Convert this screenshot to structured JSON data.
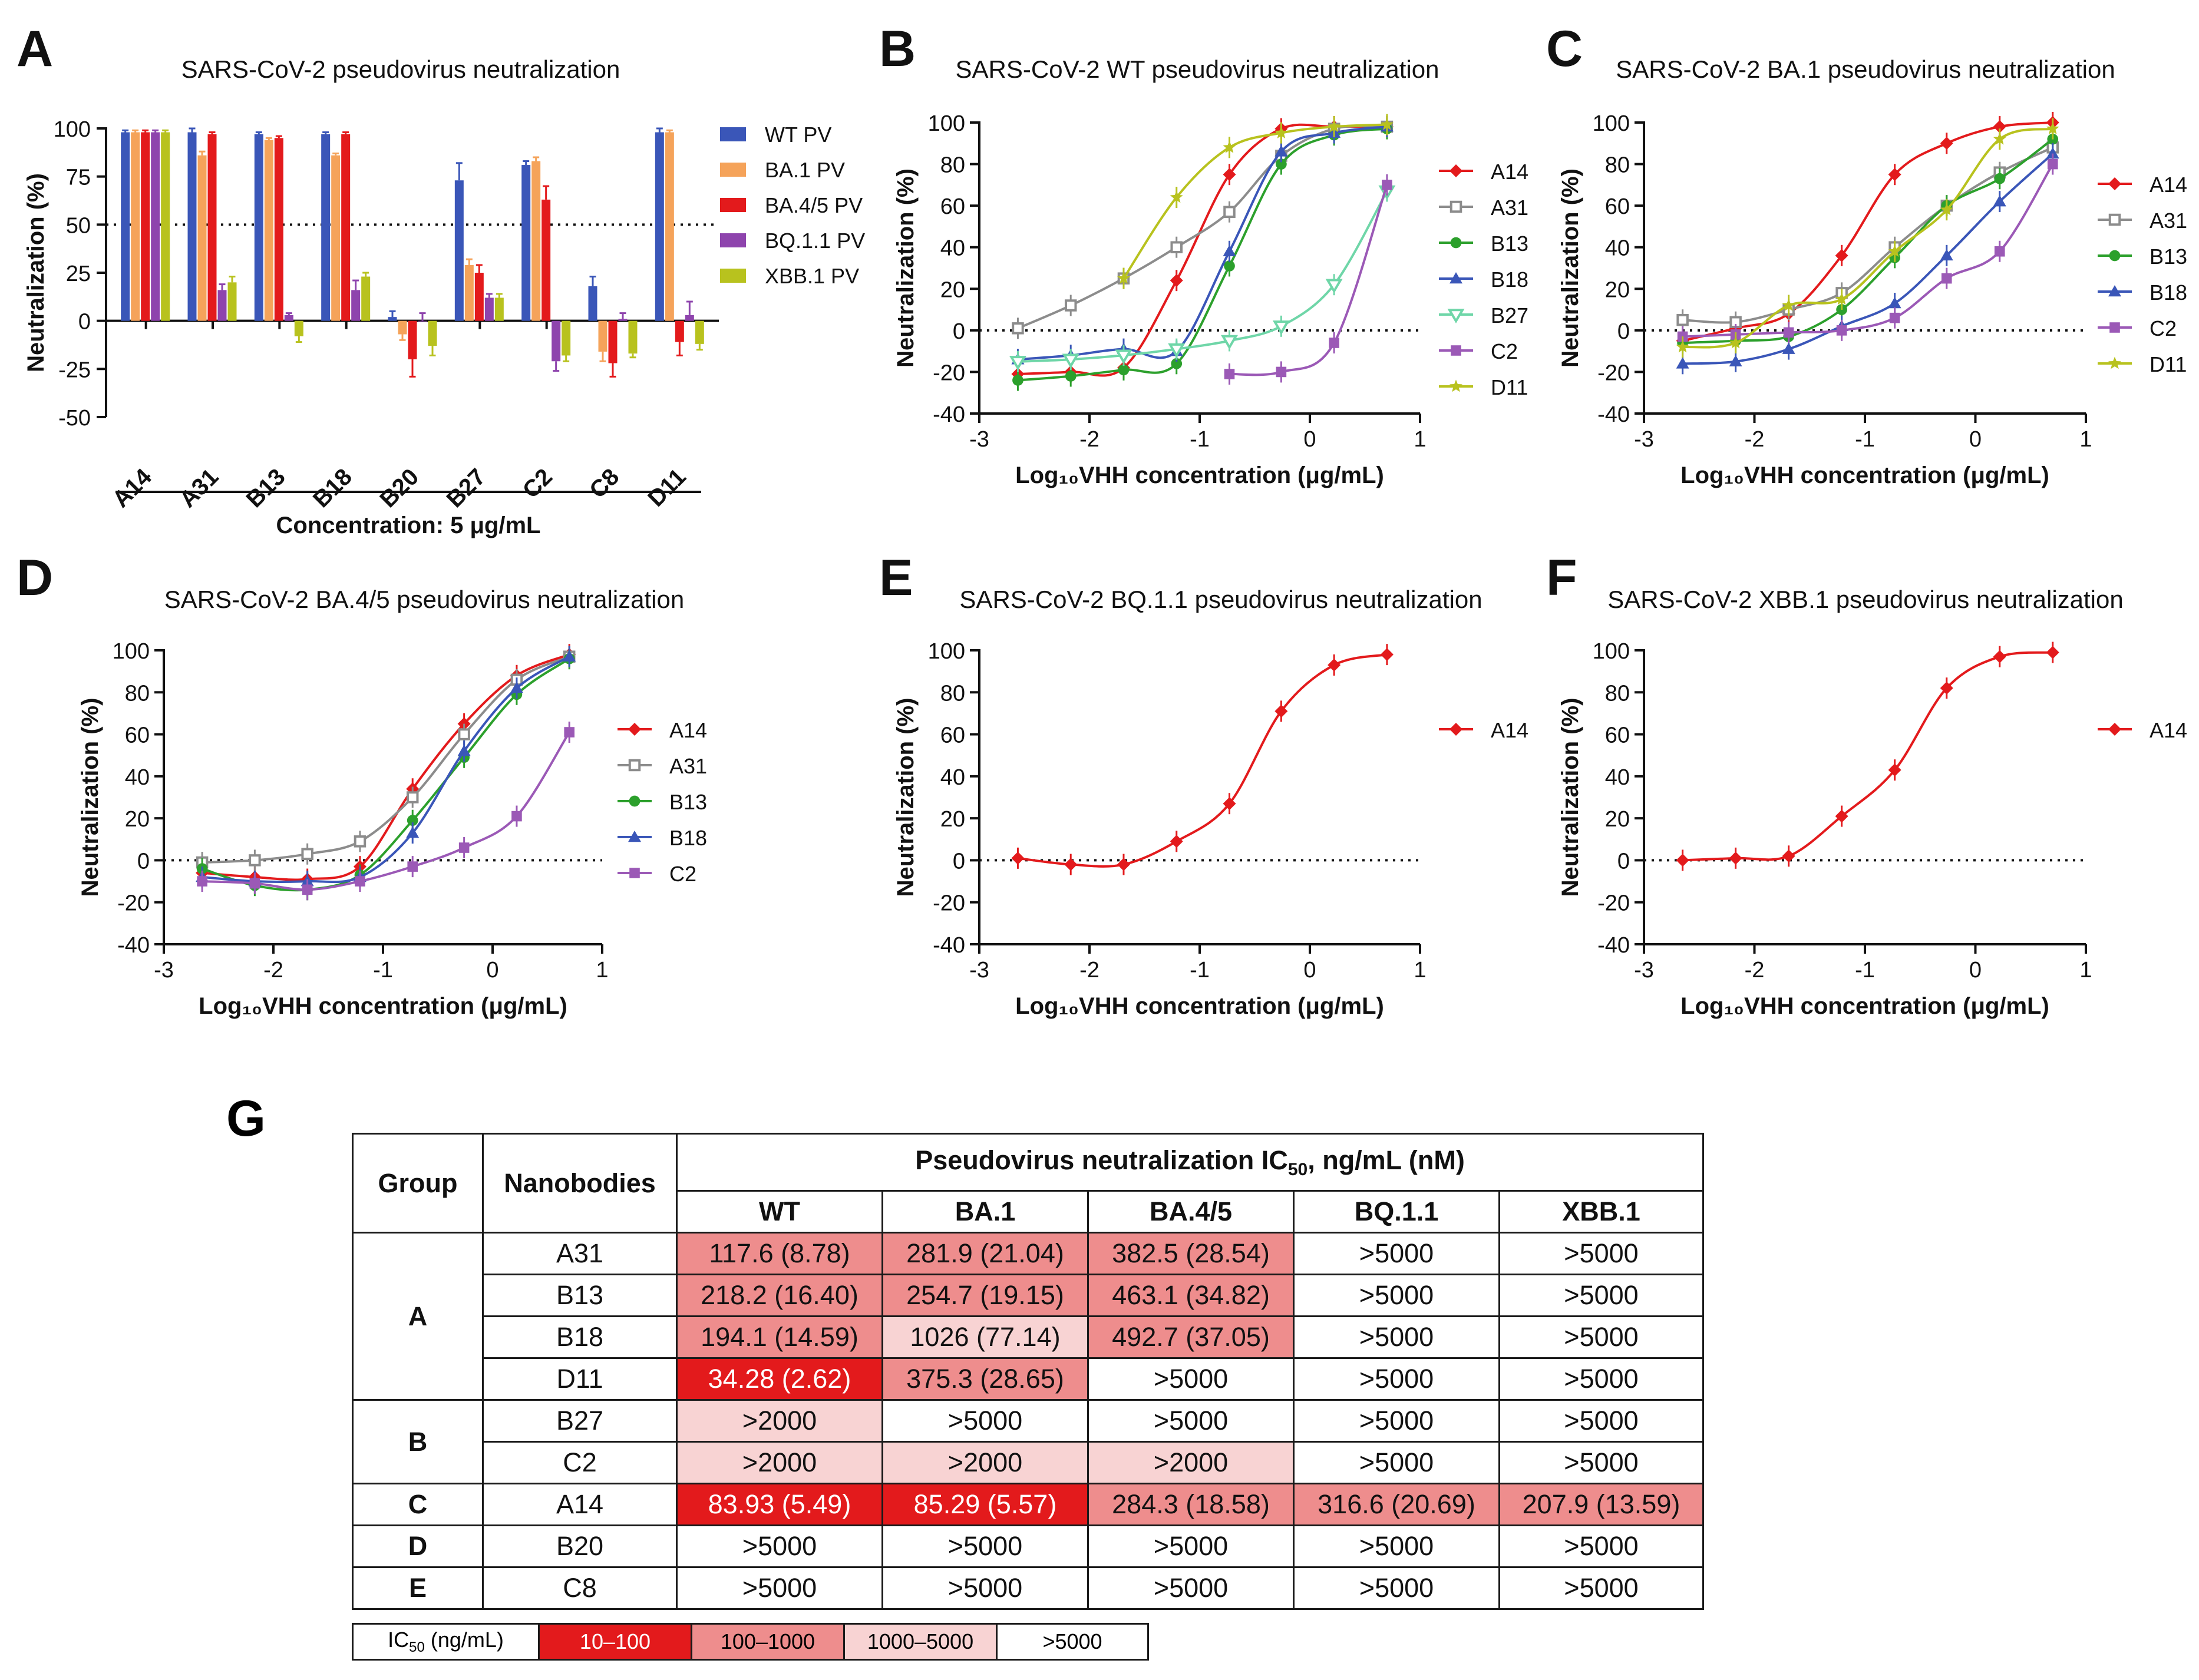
{
  "colors": {
    "red": "#e31a1c",
    "grey": "#8c8c8c",
    "green": "#2ca02c",
    "blue": "#3a56b8",
    "teal": "#6fd6a8",
    "purple": "#9b59b6",
    "yellow": "#b8c21e",
    "orange": "#f5a35a"
  },
  "chart_data": [
    {
      "panel": "A",
      "type": "bar",
      "title": "SARS-CoV-2 pseudovirus neutralization",
      "ylabel": "Neutralization (%)",
      "xlabel": "Concentration: 5 μg/mL",
      "ylim": [
        -50,
        100
      ],
      "yticks": [
        "-50",
        "-25",
        "0",
        "25",
        "50",
        "75",
        "100"
      ],
      "refline": 50,
      "categories": [
        "A14",
        "A31",
        "B13",
        "B18",
        "B20",
        "B27",
        "C2",
        "C8",
        "D11"
      ],
      "series": [
        {
          "name": "WT PV",
          "color": "#3a56b8",
          "values": [
            98,
            98,
            97,
            97,
            2,
            73,
            81,
            18,
            98
          ],
          "err": [
            1,
            2,
            1,
            1,
            3,
            9,
            2,
            5,
            2
          ]
        },
        {
          "name": "BA.1 PV",
          "color": "#f5a35a",
          "values": [
            98,
            86,
            94,
            86,
            -7,
            29,
            83,
            -16,
            98
          ],
          "err": [
            1,
            2,
            1,
            1,
            3,
            3,
            2,
            5,
            1
          ]
        },
        {
          "name": "BA.4/5 PV",
          "color": "#e31a1c",
          "values": [
            98,
            97,
            95,
            97,
            -20,
            25,
            63,
            -22,
            -11
          ],
          "err": [
            1,
            1,
            1,
            1,
            9,
            4,
            7,
            7,
            7
          ]
        },
        {
          "name": "BQ.1.1 PV",
          "color": "#8e44ad",
          "values": [
            98,
            16,
            3,
            16,
            0,
            12,
            -21,
            1,
            3
          ],
          "err": [
            1,
            3,
            1,
            5,
            4,
            2,
            5,
            3,
            7
          ]
        },
        {
          "name": "XBB.1 PV",
          "color": "#b8c21e",
          "values": [
            98,
            20,
            -8,
            23,
            -13,
            12,
            -18,
            -17,
            -12
          ],
          "err": [
            1,
            3,
            3,
            2,
            5,
            2,
            3,
            2,
            3
          ]
        }
      ],
      "legend": "right"
    },
    {
      "panel": "B",
      "type": "line",
      "title": "SARS-CoV-2 WT pseudovirus neutralization",
      "xlabel": "Log₁₀VHH concentration (μg/mL)",
      "ylabel": "Neutralization (%)",
      "xlim": [
        -3,
        1
      ],
      "ylim": [
        -40,
        100
      ],
      "xticks": [
        "-3",
        "-2",
        "-1",
        "0",
        "1"
      ],
      "yticks": [
        "-40",
        "-20",
        "0",
        "20",
        "40",
        "60",
        "80",
        "100"
      ],
      "x": [
        -2.65,
        -2.17,
        -1.69,
        -1.21,
        -0.73,
        -0.26,
        0.22,
        0.7
      ],
      "series": [
        {
          "name": "A14",
          "marker": "diamond",
          "color": "#e31a1c",
          "values": [
            -21,
            -20,
            -18,
            24,
            75,
            97,
            98,
            98
          ]
        },
        {
          "name": "A31",
          "marker": "square-open",
          "color": "#8c8c8c",
          "values": [
            1,
            12,
            25,
            40,
            57,
            84,
            97,
            98
          ]
        },
        {
          "name": "B13",
          "marker": "circle",
          "color": "#2ca02c",
          "values": [
            -24,
            -22,
            -19,
            -16,
            31,
            80,
            94,
            97
          ]
        },
        {
          "name": "B18",
          "marker": "triangle",
          "color": "#3a56b8",
          "values": [
            -14,
            -12,
            -9,
            -10,
            38,
            86,
            95,
            98
          ]
        },
        {
          "name": "B27",
          "marker": "triangle-down-open",
          "color": "#6fd6a8",
          "values": [
            -15,
            -14,
            -12,
            -9,
            -5,
            2,
            22,
            67
          ]
        },
        {
          "name": "C2",
          "marker": "square",
          "color": "#9b59b6",
          "values": [
            null,
            null,
            null,
            null,
            -21,
            -20,
            -6,
            70
          ]
        },
        {
          "name": "D11",
          "marker": "star",
          "color": "#b8c21e",
          "values": [
            null,
            null,
            25,
            64,
            88,
            95,
            98,
            99
          ]
        }
      ],
      "legend": "right"
    },
    {
      "panel": "C",
      "type": "line",
      "title": "SARS-CoV-2 BA.1 pseudovirus neutralization",
      "xlabel": "Log₁₀VHH concentration (μg/mL)",
      "ylabel": "Neutralization (%)",
      "xlim": [
        -3,
        1
      ],
      "ylim": [
        -40,
        100
      ],
      "xticks": [
        "-3",
        "-2",
        "-1",
        "0",
        "1"
      ],
      "yticks": [
        "-40",
        "-20",
        "0",
        "20",
        "40",
        "60",
        "80",
        "100"
      ],
      "x": [
        -2.65,
        -2.17,
        -1.69,
        -1.21,
        -0.73,
        -0.26,
        0.22,
        0.7
      ],
      "series": [
        {
          "name": "A14",
          "marker": "diamond",
          "color": "#e31a1c",
          "values": [
            -5,
            1,
            8,
            36,
            75,
            90,
            98,
            100
          ]
        },
        {
          "name": "A31",
          "marker": "square-open",
          "color": "#8c8c8c",
          "values": [
            5,
            4,
            10,
            18,
            40,
            60,
            76,
            88
          ]
        },
        {
          "name": "B13",
          "marker": "circle",
          "color": "#2ca02c",
          "values": [
            -6,
            -5,
            -3,
            10,
            35,
            60,
            73,
            92
          ]
        },
        {
          "name": "B18",
          "marker": "triangle",
          "color": "#3a56b8",
          "values": [
            -16,
            -15,
            -9,
            2,
            13,
            36,
            62,
            85
          ]
        },
        {
          "name": "C2",
          "marker": "square",
          "color": "#9b59b6",
          "values": [
            -3,
            -2,
            -1,
            0,
            6,
            25,
            38,
            80
          ]
        },
        {
          "name": "D11",
          "marker": "star",
          "color": "#b8c21e",
          "values": [
            -8,
            -6,
            12,
            15,
            38,
            58,
            92,
            97
          ]
        }
      ],
      "legend": "right"
    },
    {
      "panel": "D",
      "type": "line",
      "title": "SARS-CoV-2 BA.4/5 pseudovirus neutralization",
      "xlabel": "Log₁₀VHH concentration (μg/mL)",
      "ylabel": "Neutralization (%)",
      "xlim": [
        -3,
        1
      ],
      "ylim": [
        -40,
        100
      ],
      "xticks": [
        "-3",
        "-2",
        "-1",
        "0",
        "1"
      ],
      "yticks": [
        "-40",
        "-20",
        "0",
        "20",
        "40",
        "60",
        "80",
        "100"
      ],
      "x": [
        -2.65,
        -2.17,
        -1.69,
        -1.21,
        -0.73,
        -0.26,
        0.22,
        0.7
      ],
      "series": [
        {
          "name": "A14",
          "marker": "diamond",
          "color": "#e31a1c",
          "values": [
            -6,
            -8,
            -9,
            -3,
            34,
            65,
            88,
            98
          ]
        },
        {
          "name": "A31",
          "marker": "square-open",
          "color": "#8c8c8c",
          "values": [
            -1,
            0,
            3,
            9,
            30,
            60,
            86,
            97
          ]
        },
        {
          "name": "B13",
          "marker": "circle",
          "color": "#2ca02c",
          "values": [
            -4,
            -12,
            -14,
            -7,
            19,
            49,
            79,
            96
          ]
        },
        {
          "name": "B18",
          "marker": "triangle",
          "color": "#3a56b8",
          "values": [
            -8,
            -10,
            -10,
            -8,
            13,
            52,
            82,
            97
          ]
        },
        {
          "name": "C2",
          "marker": "square",
          "color": "#9b59b6",
          "values": [
            -10,
            -11,
            -14,
            -10,
            -3,
            6,
            21,
            61
          ]
        }
      ],
      "legend": "right"
    },
    {
      "panel": "E",
      "type": "line",
      "title": "SARS-CoV-2 BQ.1.1 pseudovirus neutralization",
      "xlabel": "Log₁₀VHH concentration (μg/mL)",
      "ylabel": "Neutralization (%)",
      "xlim": [
        -3,
        1
      ],
      "ylim": [
        -40,
        100
      ],
      "xticks": [
        "-3",
        "-2",
        "-1",
        "0",
        "1"
      ],
      "yticks": [
        "-40",
        "-20",
        "0",
        "20",
        "40",
        "60",
        "80",
        "100"
      ],
      "x": [
        -2.65,
        -2.17,
        -1.69,
        -1.21,
        -0.73,
        -0.26,
        0.22,
        0.7
      ],
      "series": [
        {
          "name": "A14",
          "marker": "diamond",
          "color": "#e31a1c",
          "values": [
            1,
            -2,
            -2,
            9,
            27,
            71,
            93,
            98
          ]
        }
      ],
      "legend": "right"
    },
    {
      "panel": "F",
      "type": "line",
      "title": "SARS-CoV-2 XBB.1 pseudovirus neutralization",
      "xlabel": "Log₁₀VHH concentration (μg/mL)",
      "ylabel": "Neutralization (%)",
      "xlim": [
        -3,
        1
      ],
      "ylim": [
        -40,
        100
      ],
      "xticks": [
        "-3",
        "-2",
        "-1",
        "0",
        "1"
      ],
      "yticks": [
        "-40",
        "-20",
        "0",
        "20",
        "40",
        "60",
        "80",
        "100"
      ],
      "x": [
        -2.65,
        -2.17,
        -1.69,
        -1.21,
        -0.73,
        -0.26,
        0.22,
        0.7
      ],
      "series": [
        {
          "name": "A14",
          "marker": "diamond",
          "color": "#e31a1c",
          "values": [
            0,
            1,
            2,
            21,
            43,
            82,
            97,
            99
          ]
        }
      ],
      "legend": "right"
    },
    {
      "panel": "G",
      "type": "table",
      "header": {
        "group": "Group",
        "nanobodies": "Nanobodies",
        "main": "Pseudovirus  neutralization IC",
        "sub": "50",
        "main_tail": ", ng/mL (nM)",
        "cols": [
          "WT",
          "BA.1",
          "BA.4/5",
          "BQ.1.1",
          "XBB.1"
        ]
      },
      "groups": [
        {
          "label": "A",
          "rows": [
            {
              "name": "A31",
              "cells": [
                {
                  "v": "117.6 (8.78)",
                  "c": 2
                },
                {
                  "v": "281.9 (21.04)",
                  "c": 2
                },
                {
                  "v": "382.5 (28.54)",
                  "c": 2
                },
                {
                  "v": ">5000",
                  "c": 4
                },
                {
                  "v": ">5000",
                  "c": 4
                }
              ]
            },
            {
              "name": "B13",
              "cells": [
                {
                  "v": "218.2 (16.40)",
                  "c": 2
                },
                {
                  "v": "254.7 (19.15)",
                  "c": 2
                },
                {
                  "v": "463.1 (34.82)",
                  "c": 2
                },
                {
                  "v": ">5000",
                  "c": 4
                },
                {
                  "v": ">5000",
                  "c": 4
                }
              ]
            },
            {
              "name": "B18",
              "cells": [
                {
                  "v": "194.1 (14.59)",
                  "c": 2
                },
                {
                  "v": "1026 (77.14)",
                  "c": 3
                },
                {
                  "v": "492.7 (37.05)",
                  "c": 2
                },
                {
                  "v": ">5000",
                  "c": 4
                },
                {
                  "v": ">5000",
                  "c": 4
                }
              ]
            },
            {
              "name": "D11",
              "cells": [
                {
                  "v": "34.28 (2.62)",
                  "c": 1
                },
                {
                  "v": "375.3 (28.65)",
                  "c": 2
                },
                {
                  "v": ">5000",
                  "c": 4
                },
                {
                  "v": ">5000",
                  "c": 4
                },
                {
                  "v": ">5000",
                  "c": 4
                }
              ]
            }
          ]
        },
        {
          "label": "B",
          "rows": [
            {
              "name": "B27",
              "cells": [
                {
                  "v": ">2000",
                  "c": 3
                },
                {
                  "v": ">5000",
                  "c": 4
                },
                {
                  "v": ">5000",
                  "c": 4
                },
                {
                  "v": ">5000",
                  "c": 4
                },
                {
                  "v": ">5000",
                  "c": 4
                }
              ]
            },
            {
              "name": "C2",
              "cells": [
                {
                  "v": ">2000",
                  "c": 3
                },
                {
                  "v": ">2000",
                  "c": 3
                },
                {
                  "v": ">2000",
                  "c": 3
                },
                {
                  "v": ">5000",
                  "c": 4
                },
                {
                  "v": ">5000",
                  "c": 4
                }
              ]
            }
          ]
        },
        {
          "label": "C",
          "rows": [
            {
              "name": "A14",
              "cells": [
                {
                  "v": "83.93 (5.49)",
                  "c": 1
                },
                {
                  "v": "85.29 (5.57)",
                  "c": 1
                },
                {
                  "v": "284.3 (18.58)",
                  "c": 2
                },
                {
                  "v": "316.6  (20.69)",
                  "c": 2
                },
                {
                  "v": "207.9 (13.59)",
                  "c": 2
                }
              ]
            }
          ]
        },
        {
          "label": "D",
          "rows": [
            {
              "name": "B20",
              "cells": [
                {
                  "v": ">5000",
                  "c": 4
                },
                {
                  "v": ">5000",
                  "c": 4
                },
                {
                  "v": ">5000",
                  "c": 4
                },
                {
                  "v": ">5000",
                  "c": 4
                },
                {
                  "v": ">5000",
                  "c": 4
                }
              ]
            }
          ]
        },
        {
          "label": "E",
          "rows": [
            {
              "name": "C8",
              "cells": [
                {
                  "v": ">5000",
                  "c": 4
                },
                {
                  "v": ">5000",
                  "c": 4
                },
                {
                  "v": ">5000",
                  "c": 4
                },
                {
                  "v": ">5000",
                  "c": 4
                },
                {
                  "v": ">5000",
                  "c": 4
                }
              ]
            }
          ]
        }
      ],
      "level_colors": {
        "1": "#e31a1c",
        "2": "#ee8d8d",
        "3": "#f8d3d3",
        "4": "#ffffff"
      },
      "legend": [
        {
          "text": "IC",
          "sub": "50",
          "tail": " (ng/mL)",
          "c": 4
        },
        {
          "text": "10–100",
          "c": 1
        },
        {
          "text": "100–1000",
          "c": 2
        },
        {
          "text": "1000–5000",
          "c": 3
        },
        {
          "text": ">5000",
          "c": 4
        }
      ]
    }
  ],
  "panel_letters": [
    "A",
    "B",
    "C",
    "D",
    "E",
    "F",
    "G"
  ]
}
